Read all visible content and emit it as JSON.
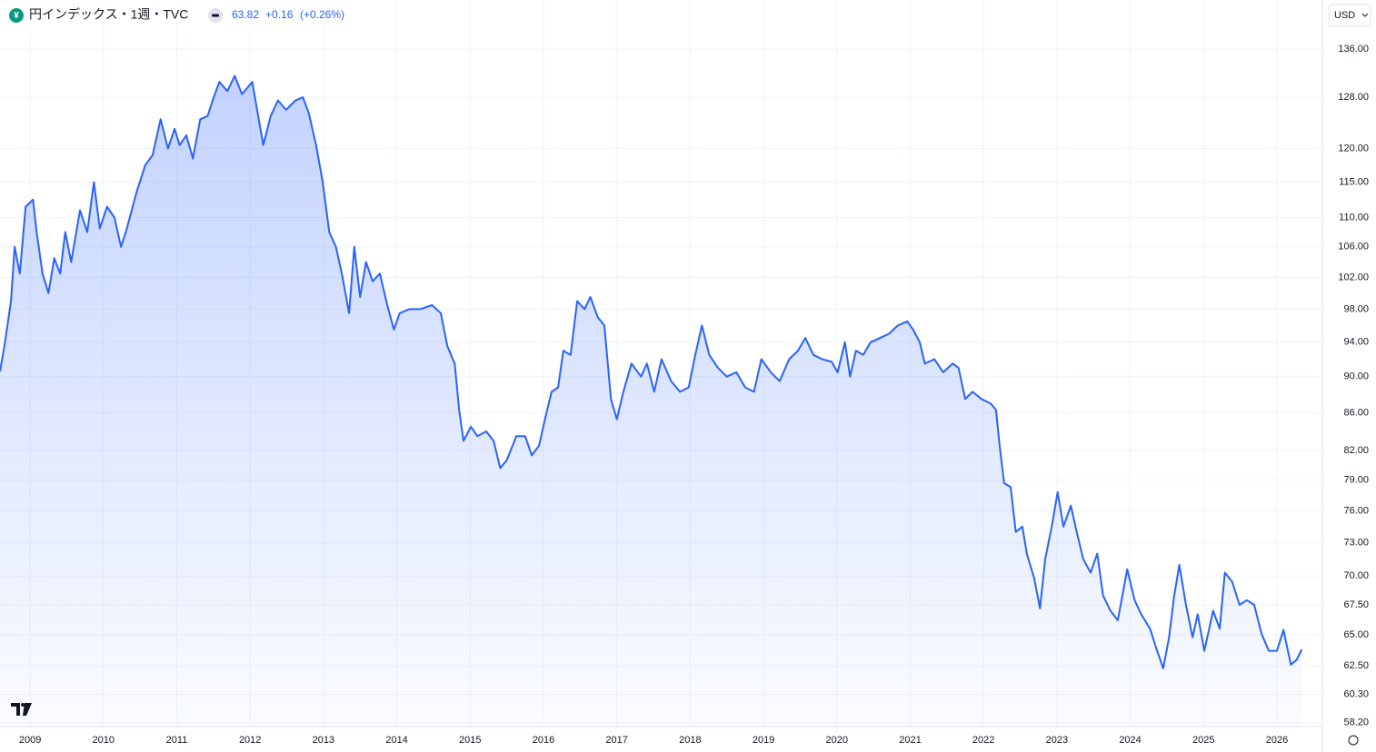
{
  "chart_data": {
    "type": "line",
    "title": "円インデックス・1週・TVC",
    "last": "63.82",
    "change": "+0.16",
    "change_pct": "(+0.26%)",
    "currency": "USD",
    "color": "#2962ff",
    "log_scale": true,
    "grid": true,
    "xlim": [
      2008.59,
      2026.62
    ],
    "xticks": [
      2009,
      2010,
      2011,
      2012,
      2013,
      2014,
      2015,
      2016,
      2017,
      2018,
      2019,
      2020,
      2021,
      2022,
      2023,
      2024,
      2025,
      2026
    ],
    "ylim": [
      57.9,
      144.7
    ],
    "yticks": [
      {
        "value": 136,
        "label": "136.00"
      },
      {
        "value": 128,
        "label": "128.00"
      },
      {
        "value": 120,
        "label": "120.00"
      },
      {
        "value": 115,
        "label": "115.00"
      },
      {
        "value": 110,
        "label": "110.00"
      },
      {
        "value": 106,
        "label": "106.00"
      },
      {
        "value": 102,
        "label": "102.00"
      },
      {
        "value": 98,
        "label": "98.00"
      },
      {
        "value": 94,
        "label": "94.00"
      },
      {
        "value": 90,
        "label": "90.00"
      },
      {
        "value": 86,
        "label": "86.00"
      },
      {
        "value": 82,
        "label": "82.00"
      },
      {
        "value": 79,
        "label": "79.00"
      },
      {
        "value": 76,
        "label": "76.00"
      },
      {
        "value": 73,
        "label": "73.00"
      },
      {
        "value": 70,
        "label": "70.00"
      },
      {
        "value": 67.5,
        "label": "67.50"
      },
      {
        "value": 65,
        "label": "65.00"
      },
      {
        "value": 62.5,
        "label": "62.50"
      },
      {
        "value": 60.3,
        "label": "60.30"
      },
      {
        "value": 58.2,
        "label": "58.20"
      }
    ],
    "x": [
      2008.59,
      2008.65,
      2008.74,
      2008.79,
      2008.86,
      2008.94,
      2009.04,
      2009.09,
      2009.17,
      2009.25,
      2009.33,
      2009.41,
      2009.48,
      2009.56,
      2009.68,
      2009.78,
      2009.87,
      2009.95,
      2010.05,
      2010.15,
      2010.24,
      2010.32,
      2010.45,
      2010.57,
      2010.67,
      2010.78,
      2010.88,
      2010.97,
      2011.04,
      2011.13,
      2011.22,
      2011.32,
      2011.42,
      2011.49,
      2011.58,
      2011.69,
      2011.79,
      2011.89,
      2011.96,
      2012.03,
      2012.11,
      2012.18,
      2012.28,
      2012.38,
      2012.49,
      2012.62,
      2012.72,
      2012.8,
      2012.9,
      2012.99,
      2013.08,
      2013.17,
      2013.25,
      2013.35,
      2013.42,
      2013.5,
      2013.58,
      2013.67,
      2013.77,
      2013.87,
      2013.96,
      2014.04,
      2014.17,
      2014.32,
      2014.48,
      2014.6,
      2014.69,
      2014.79,
      2014.85,
      2014.91,
      2015.01,
      2015.1,
      2015.22,
      2015.32,
      2015.41,
      2015.5,
      2015.63,
      2015.75,
      2015.84,
      2015.94,
      2016.02,
      2016.11,
      2016.2,
      2016.27,
      2016.37,
      2016.46,
      2016.56,
      2016.64,
      2016.74,
      2016.83,
      2016.92,
      2017.0,
      2017.09,
      2017.2,
      2017.33,
      2017.41,
      2017.51,
      2017.61,
      2017.74,
      2017.86,
      2017.98,
      2018.07,
      2018.16,
      2018.26,
      2018.38,
      2018.5,
      2018.63,
      2018.75,
      2018.87,
      2018.97,
      2019.1,
      2019.22,
      2019.35,
      2019.47,
      2019.57,
      2019.68,
      2019.8,
      2019.93,
      2020.01,
      2020.11,
      2020.18,
      2020.26,
      2020.36,
      2020.46,
      2020.59,
      2020.71,
      2020.83,
      2020.96,
      2021.04,
      2021.13,
      2021.2,
      2021.33,
      2021.45,
      2021.58,
      2021.66,
      2021.75,
      2021.85,
      2021.97,
      2022.1,
      2022.17,
      2022.22,
      2022.28,
      2022.37,
      2022.44,
      2022.53,
      2022.59,
      2022.69,
      2022.77,
      2022.84,
      2022.93,
      2023.01,
      2023.09,
      2023.19,
      2023.27,
      2023.36,
      2023.46,
      2023.55,
      2023.63,
      2023.73,
      2023.83,
      2023.96,
      2024.06,
      2024.15,
      2024.27,
      2024.35,
      2024.45,
      2024.53,
      2024.6,
      2024.67,
      2024.76,
      2024.85,
      2024.92,
      2025.01,
      2025.13,
      2025.22,
      2025.29,
      2025.39,
      2025.49,
      2025.59,
      2025.69,
      2025.79,
      2025.89,
      2026.0,
      2026.09,
      2026.19,
      2026.27,
      2026.34
    ],
    "values": [
      90.6,
      93.5,
      99,
      106,
      102.5,
      111.5,
      112.5,
      108,
      102.5,
      100,
      104.5,
      102.5,
      108,
      104,
      111,
      108,
      115,
      108.5,
      111.5,
      110,
      106,
      108.5,
      113.5,
      117.5,
      119,
      124.5,
      120,
      123,
      120.5,
      122,
      118.5,
      124.5,
      125,
      127.5,
      130.5,
      129,
      131.5,
      128.5,
      129.5,
      130.5,
      125,
      120.5,
      125,
      127.5,
      126,
      127.5,
      128,
      125.5,
      120.5,
      115,
      108,
      106,
      102.5,
      97.5,
      106,
      99.5,
      104,
      101.5,
      102.5,
      98.5,
      95.5,
      97.5,
      98,
      98,
      98.5,
      97.5,
      93.5,
      91.5,
      86.3,
      83,
      84.5,
      83.5,
      84,
      83,
      80.2,
      81,
      83.5,
      83.5,
      81.5,
      82.5,
      85.3,
      88.3,
      88.8,
      93,
      92.5,
      99,
      98,
      99.5,
      97,
      96,
      87.5,
      85.3,
      88.3,
      91.5,
      90,
      91.5,
      88.3,
      92,
      89.5,
      88.3,
      88.8,
      92.5,
      96,
      92.5,
      91,
      90,
      90.5,
      88.8,
      88.3,
      92,
      90.5,
      89.5,
      92,
      93,
      94.5,
      92.5,
      92,
      91.7,
      90.5,
      94,
      90,
      93,
      92.5,
      94,
      94.5,
      95,
      96,
      96.5,
      95.5,
      94,
      91.5,
      92,
      90.5,
      91.5,
      91,
      87.5,
      88.3,
      87.5,
      87,
      86.3,
      82.5,
      78.7,
      78.3,
      74,
      74.5,
      72,
      69.8,
      67.2,
      71.5,
      74.5,
      77.8,
      74.5,
      76.5,
      74,
      71.5,
      70.3,
      72,
      68.3,
      67,
      66.2,
      70.6,
      67.9,
      66.7,
      65.5,
      64,
      62.3,
      64.8,
      68.3,
      71,
      67.5,
      64.8,
      66.7,
      63.7,
      67,
      65.5,
      70.3,
      69.5,
      67.5,
      67.9,
      67.5,
      65.1,
      63.7,
      63.7,
      65.4,
      62.6,
      63,
      63.82
    ]
  }
}
